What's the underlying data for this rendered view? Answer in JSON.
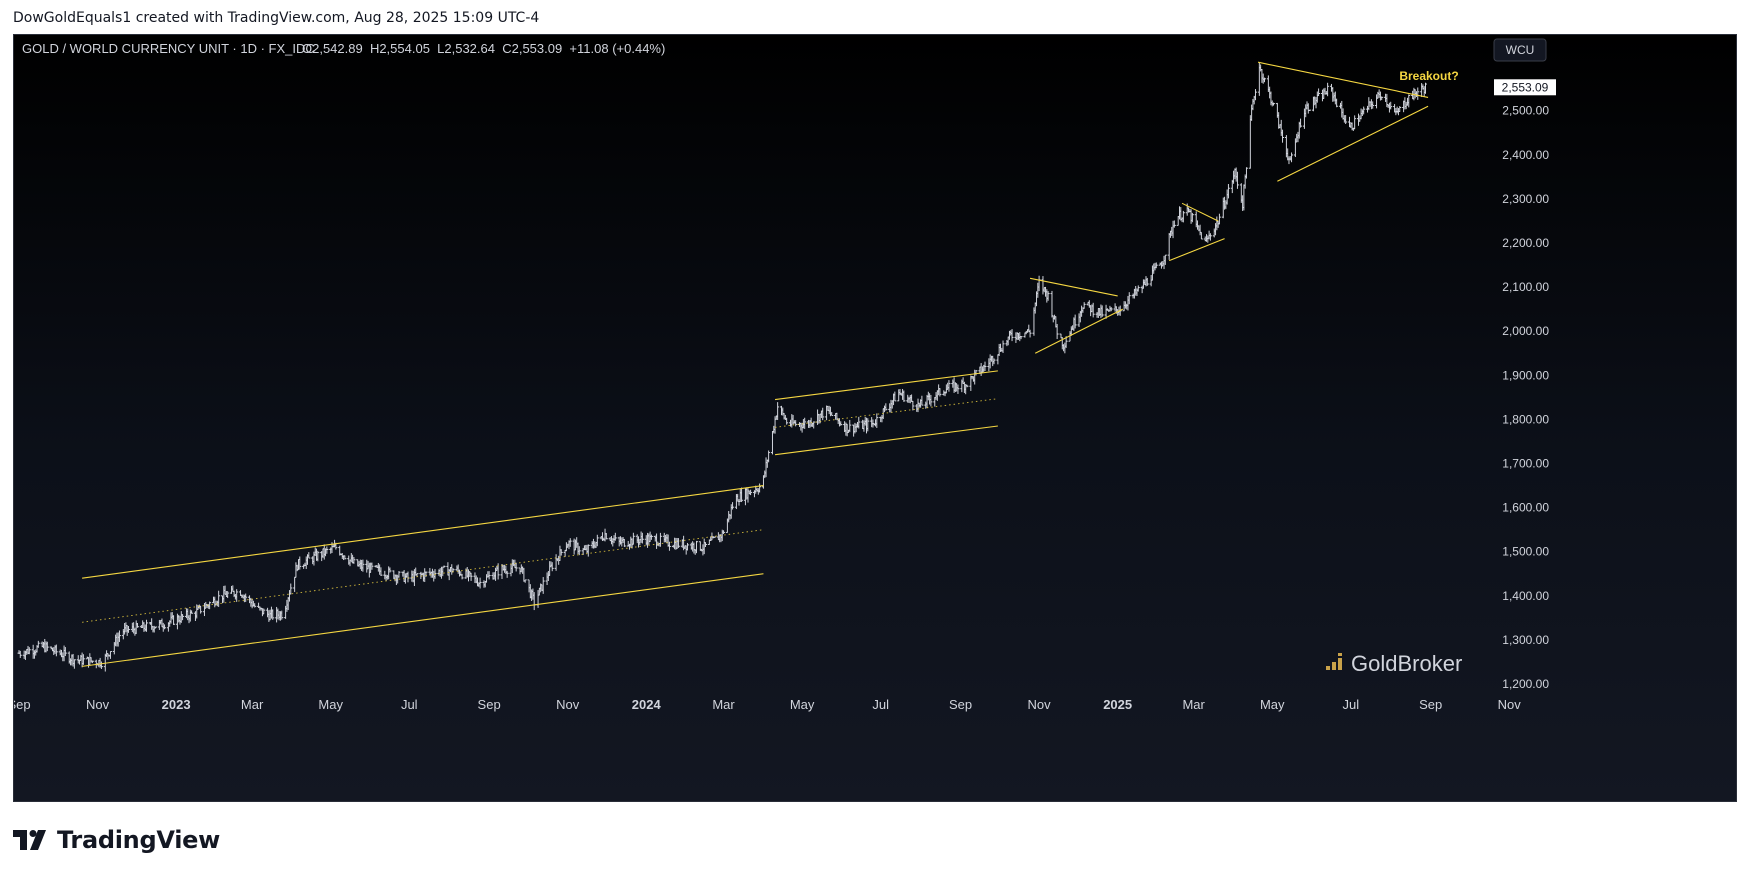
{
  "header": {
    "credit": "DowGoldEquals1 created with TradingView.com, Aug 28, 2025 15:09 UTC-4"
  },
  "symbol": {
    "title": "GOLD / WORLD CURRENCY UNIT · 1D · FX_IDC",
    "ohlc": "O2,542.89  H2,554.05  L2,532.64  C2,553.09  +11.08 (+0.44%)",
    "unit_badge": "WCU",
    "last_price": "2,553.09"
  },
  "annotation": {
    "breakout": "Breakout?"
  },
  "watermark": {
    "text": "GoldBroker"
  },
  "footer": {
    "logo_text": "TradingView"
  },
  "colors": {
    "candle": "#d1d4dc",
    "pattern_line": "#f5d742",
    "annotation": "#f5d742",
    "axis_text": "#d1d4dc",
    "background_top": "#000000",
    "background_bottom": "#131722"
  },
  "chart_data": {
    "type": "ohlc",
    "interval": "1D",
    "y_axis": {
      "ticks": [
        "1,200.00",
        "1,300.00",
        "1,400.00",
        "1,500.00",
        "1,600.00",
        "1,700.00",
        "1,800.00",
        "1,900.00",
        "2,000.00",
        "2,100.00",
        "2,200.00",
        "2,300.00",
        "2,400.00",
        "2,500.00"
      ],
      "range": [
        1170,
        2620
      ]
    },
    "x_axis": {
      "labels": [
        "Sep",
        "Nov",
        "2023",
        "Mar",
        "May",
        "Jul",
        "Sep",
        "Nov",
        "2024",
        "Mar",
        "May",
        "Jul",
        "Sep",
        "Nov",
        "2025",
        "Mar",
        "May",
        "Jul",
        "Sep",
        "Nov"
      ],
      "bold_labels": [
        "2023",
        "2024",
        "2025"
      ]
    },
    "price_anchors": [
      [
        "2022-09-01",
        1270
      ],
      [
        "2022-09-20",
        1285
      ],
      [
        "2022-10-15",
        1255
      ],
      [
        "2022-11-05",
        1250
      ],
      [
        "2022-11-20",
        1320
      ],
      [
        "2022-12-20",
        1335
      ],
      [
        "2023-01-15",
        1360
      ],
      [
        "2023-02-05",
        1400
      ],
      [
        "2023-02-20",
        1410
      ],
      [
        "2023-03-05",
        1370
      ],
      [
        "2023-03-15",
        1355
      ],
      [
        "2023-03-25",
        1360
      ],
      [
        "2023-04-05",
        1470
      ],
      [
        "2023-04-20",
        1490
      ],
      [
        "2023-05-05",
        1510
      ],
      [
        "2023-05-20",
        1470
      ],
      [
        "2023-06-10",
        1455
      ],
      [
        "2023-06-30",
        1440
      ],
      [
        "2023-07-15",
        1450
      ],
      [
        "2023-08-05",
        1460
      ],
      [
        "2023-08-25",
        1430
      ],
      [
        "2023-09-10",
        1460
      ],
      [
        "2023-09-25",
        1465
      ],
      [
        "2023-10-06",
        1385
      ],
      [
        "2023-10-20",
        1470
      ],
      [
        "2023-11-01",
        1520
      ],
      [
        "2023-11-15",
        1500
      ],
      [
        "2023-11-30",
        1540
      ],
      [
        "2023-12-10",
        1520
      ],
      [
        "2024-01-01",
        1530
      ],
      [
        "2024-01-20",
        1520
      ],
      [
        "2024-02-15",
        1510
      ],
      [
        "2024-02-29",
        1540
      ],
      [
        "2024-03-10",
        1620
      ],
      [
        "2024-03-31",
        1650
      ],
      [
        "2024-04-12",
        1830
      ],
      [
        "2024-04-20",
        1790
      ],
      [
        "2024-05-05",
        1790
      ],
      [
        "2024-05-20",
        1820
      ],
      [
        "2024-06-05",
        1780
      ],
      [
        "2024-06-25",
        1790
      ],
      [
        "2024-07-15",
        1860
      ],
      [
        "2024-07-31",
        1830
      ],
      [
        "2024-08-20",
        1870
      ],
      [
        "2024-09-05",
        1880
      ],
      [
        "2024-09-20",
        1920
      ],
      [
        "2024-10-10",
        1990
      ],
      [
        "2024-10-25",
        2000
      ],
      [
        "2024-11-01",
        2110
      ],
      [
        "2024-11-08",
        2080
      ],
      [
        "2024-11-15",
        2000
      ],
      [
        "2024-11-20",
        1970
      ],
      [
        "2024-12-05",
        2060
      ],
      [
        "2024-12-20",
        2040
      ],
      [
        "2025-01-02",
        2050
      ],
      [
        "2025-01-20",
        2100
      ],
      [
        "2025-02-05",
        2160
      ],
      [
        "2025-02-15",
        2260
      ],
      [
        "2025-02-25",
        2270
      ],
      [
        "2025-03-10",
        2200
      ],
      [
        "2025-03-20",
        2250
      ],
      [
        "2025-04-02",
        2360
      ],
      [
        "2025-04-08",
        2290
      ],
      [
        "2025-04-15",
        2500
      ],
      [
        "2025-04-21",
        2600
      ],
      [
        "2025-05-01",
        2520
      ],
      [
        "2025-05-15",
        2380
      ],
      [
        "2025-05-25",
        2500
      ],
      [
        "2025-06-15",
        2550
      ],
      [
        "2025-06-30",
        2460
      ],
      [
        "2025-07-15",
        2510
      ],
      [
        "2025-07-25",
        2540
      ],
      [
        "2025-08-05",
        2490
      ],
      [
        "2025-08-15",
        2530
      ],
      [
        "2025-08-28",
        2553
      ]
    ],
    "trend_lines": [
      {
        "start": [
          "2022-10-20",
          1440
        ],
        "end": [
          "2024-04-01",
          1650
        ],
        "style": "solid"
      },
      {
        "start": [
          "2022-10-20",
          1240
        ],
        "end": [
          "2024-04-01",
          1450
        ],
        "style": "solid"
      },
      {
        "start": [
          "2022-10-20",
          1340
        ],
        "end": [
          "2024-04-01",
          1550
        ],
        "style": "dotted"
      },
      {
        "start": [
          "2024-04-10",
          1845
        ],
        "end": [
          "2024-09-30",
          1910
        ],
        "style": "solid"
      },
      {
        "start": [
          "2024-04-10",
          1720
        ],
        "end": [
          "2024-09-30",
          1785
        ],
        "style": "solid"
      },
      {
        "start": [
          "2024-04-10",
          1782
        ],
        "end": [
          "2024-09-30",
          1847
        ],
        "style": "dotted"
      },
      {
        "start": [
          "2024-10-25",
          2120
        ],
        "end": [
          "2025-01-01",
          2080
        ],
        "style": "solid"
      },
      {
        "start": [
          "2024-10-29",
          1950
        ],
        "end": [
          "2025-01-05",
          2050
        ],
        "style": "solid"
      },
      {
        "start": [
          "2025-02-20",
          2290
        ],
        "end": [
          "2025-03-20",
          2250
        ],
        "style": "solid"
      },
      {
        "start": [
          "2025-02-10",
          2160
        ],
        "end": [
          "2025-03-25",
          2210
        ],
        "style": "solid"
      },
      {
        "start": [
          "2025-04-20",
          2610
        ],
        "end": [
          "2025-08-30",
          2530
        ],
        "style": "solid"
      },
      {
        "start": [
          "2025-05-05",
          2340
        ],
        "end": [
          "2025-08-30",
          2510
        ],
        "style": "solid"
      }
    ]
  }
}
